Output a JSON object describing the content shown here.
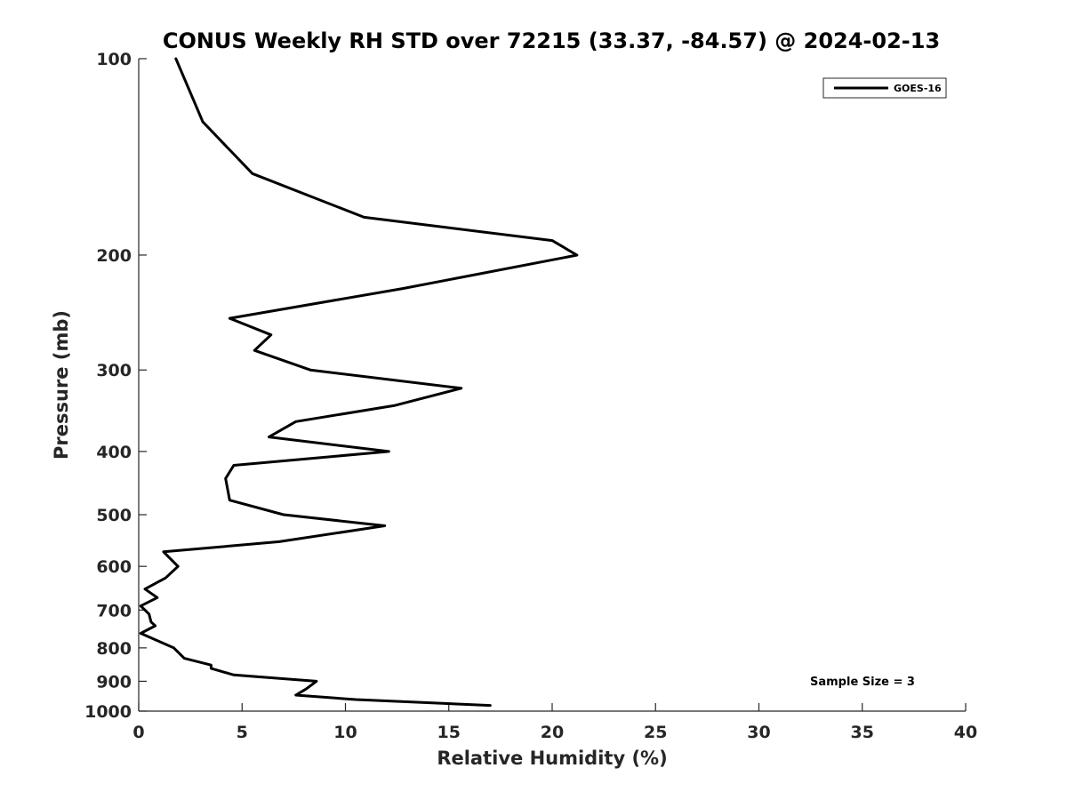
{
  "chart_data": {
    "type": "line",
    "title": "CONUS Weekly RH STD over 72215 (33.37, -84.57) @ 2024-02-13",
    "xlabel": "Relative Humidity (%)",
    "ylabel": "Pressure (mb)",
    "xlim": [
      0,
      40
    ],
    "ylim": [
      100,
      1000
    ],
    "y_scale": "log",
    "y_reversed": true,
    "x_ticks": [
      0,
      5,
      10,
      15,
      20,
      25,
      30,
      35,
      40
    ],
    "y_ticks": [
      100,
      200,
      300,
      400,
      500,
      600,
      700,
      800,
      900,
      1000
    ],
    "grid": false,
    "legend_position": "top-right",
    "annotation": "Sample Size = 3",
    "series": [
      {
        "name": "GOES-16",
        "color": "#000000",
        "x": [
          1.8,
          3.1,
          5.5,
          10.9,
          20.0,
          21.2,
          12.8,
          4.4,
          6.4,
          5.6,
          8.3,
          15.6,
          12.4,
          7.6,
          6.3,
          12.1,
          4.6,
          4.2,
          4.4,
          7.0,
          11.9,
          6.8,
          1.2,
          1.9,
          1.3,
          0.3,
          0.9,
          0.1,
          0.5,
          0.6,
          0.8,
          0.1,
          1.7,
          2.2,
          3.5,
          3.5,
          4.6,
          8.6,
          8.1,
          7.6,
          10.5,
          17.0
        ],
        "y": [
          100,
          125,
          150,
          175,
          190,
          200,
          225,
          250,
          265,
          280,
          300,
          320,
          340,
          360,
          380,
          400,
          420,
          440,
          475,
          500,
          520,
          550,
          570,
          600,
          625,
          650,
          670,
          690,
          710,
          730,
          740,
          760,
          800,
          830,
          850,
          860,
          880,
          900,
          925,
          945,
          960,
          980
        ]
      }
    ]
  }
}
